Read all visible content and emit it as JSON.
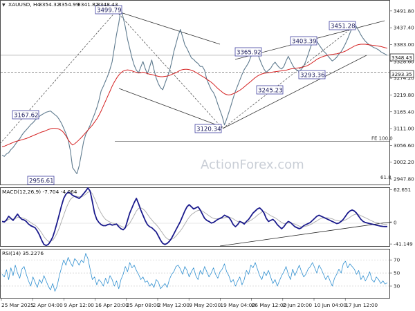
{
  "chart_data": [
    {
      "type": "line",
      "panel": "price",
      "title": "XAUUSD, H4",
      "ohlc": {
        "open": "3354.32",
        "high": "3354.99",
        "low": "3341.82",
        "close": "3348.43"
      },
      "y_ticks": [
        "3491.80",
        "3437.40",
        "3383.00",
        "3328.60",
        "3274.20",
        "3219.80",
        "3165.40",
        "3111.00",
        "3056.60",
        "3002.20",
        "2947.80"
      ],
      "ylim": [
        2930,
        3525
      ],
      "x_ticks": [
        "25 Mar 2025",
        "2 Apr 04:00",
        "9 Apr 12:00",
        "16 Apr 20:00",
        "25 Apr 08:00",
        "2 May 12:00",
        "9 May 20:00",
        "19 May 04:00",
        "26 May 12:00",
        "2 Jun 20:00",
        "10 Jun 04:00",
        "17 Jun 12:00"
      ],
      "series": [
        {
          "values": [
            3025,
            3021,
            3029,
            3033,
            3043,
            3050,
            3060,
            3070,
            3078,
            3090,
            3099,
            3107,
            3115,
            3124,
            3130,
            3138,
            3145,
            3151,
            3156,
            3160,
            3164,
            3166,
            3168,
            3162,
            3156,
            3150,
            3140,
            3128,
            3112,
            3095,
            3075,
            3040,
            2985,
            2975,
            2965,
            2990,
            3028,
            3068,
            3092,
            3106,
            3122,
            3140,
            3158,
            3178,
            3202,
            3233,
            3248,
            3265,
            3282,
            3303,
            3327,
            3372,
            3416,
            3452,
            3500,
            3470,
            3440,
            3400,
            3370,
            3340,
            3316,
            3300,
            3292,
            3310,
            3328,
            3306,
            3288,
            3310,
            3333,
            3302,
            3275,
            3256,
            3243,
            3237,
            3257,
            3277,
            3297,
            3325,
            3360,
            3385,
            3412,
            3432,
            3408,
            3382,
            3370,
            3355,
            3340,
            3335,
            3327,
            3322,
            3312,
            3312,
            3300,
            3270,
            3253,
            3237,
            3228,
            3212,
            3190,
            3170,
            3150,
            3123,
            3142,
            3163,
            3186,
            3210,
            3232,
            3250,
            3268,
            3286,
            3302,
            3313,
            3325,
            3344,
            3357,
            3366,
            3356,
            3336,
            3318,
            3303,
            3293,
            3300,
            3306,
            3318,
            3326,
            3316,
            3308,
            3304,
            3312,
            3330,
            3345,
            3330,
            3316,
            3305,
            3300,
            3295,
            3304,
            3313,
            3330,
            3350,
            3372,
            3392,
            3403,
            3394,
            3382,
            3372,
            3362,
            3355,
            3346,
            3338,
            3330,
            3335,
            3342,
            3352,
            3360,
            3372,
            3386,
            3402,
            3420,
            3438,
            3451,
            3440,
            3428,
            3414,
            3403,
            3394,
            3387,
            3381,
            3377,
            3373,
            3370,
            3366,
            3360,
            3356,
            3352,
            3348
          ]
        },
        {
          "values": [
            3052,
            3054,
            3057,
            3060,
            3063,
            3066,
            3069,
            3071,
            3073,
            3075,
            3077,
            3079,
            3082,
            3085,
            3088,
            3091,
            3094,
            3097,
            3100,
            3102,
            3105,
            3108,
            3110,
            3112,
            3112,
            3111,
            3109,
            3105,
            3098,
            3088,
            3075,
            3065,
            3058,
            3062,
            3068,
            3075,
            3082,
            3090,
            3098,
            3106,
            3114,
            3122,
            3132,
            3142,
            3154,
            3168,
            3184,
            3200,
            3216,
            3232,
            3248,
            3262,
            3274,
            3284,
            3292,
            3297,
            3300,
            3301,
            3300,
            3298,
            3295,
            3293,
            3291,
            3292,
            3294,
            3292,
            3289,
            3287,
            3286,
            3284,
            3282,
            3280,
            3279,
            3279,
            3280,
            3281,
            3283,
            3286,
            3289,
            3292,
            3296,
            3300,
            3302,
            3303,
            3303,
            3302,
            3300,
            3297,
            3293,
            3289,
            3284,
            3280,
            3276,
            3271,
            3266,
            3261,
            3255,
            3248,
            3241,
            3235,
            3229,
            3224,
            3221,
            3220,
            3221,
            3224,
            3227,
            3231,
            3235,
            3240,
            3246,
            3252,
            3258,
            3264,
            3270,
            3276,
            3281,
            3285,
            3288,
            3290,
            3291,
            3292,
            3293,
            3294,
            3295,
            3296,
            3297,
            3298,
            3299,
            3300,
            3302,
            3304,
            3305,
            3306,
            3307,
            3308,
            3309,
            3311,
            3313,
            3316,
            3320,
            3325,
            3330,
            3335,
            3339,
            3342,
            3345,
            3347,
            3349,
            3350,
            3351,
            3352,
            3353,
            3355,
            3357,
            3359,
            3362,
            3366,
            3370,
            3374,
            3378,
            3381,
            3383,
            3384,
            3384,
            3384,
            3383,
            3382,
            3381,
            3380,
            3379,
            3378,
            3377,
            3375,
            3373,
            3371
          ]
        }
      ],
      "annotations": [
        "3499.79",
        "3167.62",
        "2956.61",
        "3120.34",
        "3365.92",
        "3403.39",
        "3451.28",
        "3245.23",
        "3293.36"
      ],
      "price_tags": [
        "3348.43",
        "3293.35"
      ],
      "fib_levels": [
        {
          "label": "FE 100.0",
          "value": 3070
        },
        {
          "label": "61.8",
          "value": 2948
        }
      ],
      "watermark": "ActionForex.com"
    },
    {
      "type": "line",
      "panel": "macd",
      "title": "MACD(12,26,9) -7.704 -4.064",
      "y_ticks": [
        "62.651",
        "0",
        "-41.149"
      ],
      "ylim": [
        -45,
        66
      ],
      "series": [
        {
          "values": [
            2,
            1,
            5,
            12,
            8,
            4,
            10,
            16,
            10,
            6,
            5,
            2,
            -3,
            -6,
            -8,
            -10,
            -16,
            -24,
            -34,
            -42,
            -44,
            -42,
            -36,
            -28,
            -15,
            0,
            16,
            32,
            46,
            54,
            58,
            56,
            52,
            50,
            48,
            46,
            50,
            55,
            60,
            66,
            60,
            40,
            18,
            6,
            0,
            -4,
            -6,
            -6,
            -4,
            -3,
            -5,
            -4,
            -3,
            -8,
            -12,
            -14,
            -10,
            4,
            18,
            28,
            38,
            46,
            36,
            24,
            14,
            4,
            -4,
            -8,
            -10,
            -14,
            -18,
            -26,
            -34,
            -40,
            -42,
            -40,
            -36,
            -30,
            -22,
            -14,
            -6,
            2,
            12,
            22,
            30,
            34,
            30,
            26,
            28,
            30,
            24,
            16,
            8,
            4,
            2,
            -1,
            0,
            3,
            6,
            8,
            10,
            14,
            12,
            10,
            4,
            -4,
            -8,
            -4,
            2,
            0,
            -3,
            2,
            6,
            12,
            18,
            22,
            26,
            28,
            24,
            18,
            8,
            2,
            4,
            6,
            2,
            -4,
            -8,
            -12,
            -8,
            -2,
            2,
            0,
            -4,
            -8,
            -10,
            -12,
            -10,
            -6,
            -4,
            -2,
            0,
            4,
            8,
            12,
            14,
            12,
            10,
            8,
            6,
            4,
            2,
            0,
            -2,
            -1,
            2,
            6,
            12,
            18,
            22,
            24,
            22,
            18,
            12,
            6,
            2,
            0,
            -1,
            -2,
            -3,
            -4,
            -5,
            -6,
            -7,
            -7.5,
            -7.7,
            -7.704
          ]
        },
        {
          "values": [
            2,
            2,
            3,
            6,
            7,
            6,
            7,
            10,
            10,
            9,
            8,
            6,
            3,
            0,
            -3,
            -5,
            -9,
            -14,
            -20,
            -27,
            -32,
            -36,
            -36,
            -34,
            -28,
            -20,
            -10,
            2,
            14,
            26,
            36,
            44,
            48,
            50,
            50,
            49,
            49,
            51,
            54,
            58,
            59,
            55,
            46,
            36,
            26,
            18,
            11,
            6,
            3,
            1,
            -1,
            -2,
            -3,
            -5,
            -7,
            -9,
            -9,
            -6,
            -1,
            6,
            14,
            22,
            27,
            28,
            26,
            22,
            16,
            10,
            5,
            0,
            -4,
            -9,
            -15,
            -21,
            -27,
            -31,
            -33,
            -32,
            -30,
            -26,
            -21,
            -16,
            -10,
            -3,
            4,
            10,
            15,
            18,
            21,
            23,
            23,
            22,
            19,
            16,
            13,
            10,
            8,
            7,
            7,
            7,
            8,
            9,
            10,
            10,
            9,
            7,
            4,
            2,
            2,
            1,
            0,
            0,
            2,
            4,
            7,
            10,
            14,
            17,
            20,
            21,
            19,
            16,
            13,
            11,
            9,
            6,
            3,
            0,
            -2,
            -2,
            -1,
            -1,
            -2,
            -3,
            -5,
            -7,
            -8,
            -8,
            -7,
            -6,
            -4,
            -2,
            1,
            3,
            6,
            8,
            9,
            9,
            9,
            8,
            7,
            5,
            4,
            3,
            3,
            3,
            5,
            7,
            10,
            13,
            15,
            16,
            15,
            13,
            11,
            9,
            7,
            5,
            3,
            1,
            0,
            -1,
            -2,
            -3,
            -3.5,
            -4.064
          ]
        }
      ]
    },
    {
      "type": "line",
      "panel": "rsi",
      "title": "RSI(14) 35.2276",
      "y_ticks": [
        "70",
        "50",
        "30"
      ],
      "ylim": [
        12,
        86
      ],
      "series": [
        {
          "values": [
            48,
            44,
            55,
            40,
            58,
            46,
            62,
            50,
            42,
            56,
            60,
            48,
            38,
            30,
            44,
            36,
            28,
            40,
            34,
            46,
            38,
            30,
            24,
            34,
            22,
            30,
            46,
            58,
            70,
            62,
            74,
            66,
            60,
            72,
            68,
            62,
            70,
            66,
            80,
            72,
            56,
            40,
            44,
            32,
            40,
            36,
            30,
            42,
            34,
            46,
            40,
            30,
            38,
            26,
            40,
            48,
            60,
            52,
            66,
            58,
            62,
            54,
            48,
            40,
            44,
            36,
            38,
            30,
            34,
            28,
            40,
            36,
            26,
            30,
            34,
            28,
            40,
            48,
            52,
            60,
            62,
            56,
            48,
            60,
            54,
            44,
            52,
            58,
            46,
            40,
            54,
            48,
            60,
            52,
            44,
            50,
            58,
            48,
            42,
            52,
            56,
            64,
            52,
            46,
            36,
            40,
            30,
            38,
            44,
            32,
            40,
            54,
            48,
            62,
            58,
            66,
            56,
            46,
            40,
            52,
            46,
            54,
            44,
            34,
            40,
            30,
            38,
            46,
            52,
            60,
            48,
            40,
            56,
            46,
            54,
            62,
            52,
            44,
            48,
            56,
            60,
            66,
            58,
            50,
            62,
            56,
            48,
            40,
            46,
            38,
            30,
            42,
            48,
            56,
            50,
            64,
            68,
            58,
            64,
            60,
            56,
            48,
            54,
            40,
            46,
            38,
            44,
            52,
            40,
            36,
            44,
            40,
            34,
            38,
            33,
            35.2276
          ]
        }
      ]
    }
  ]
}
